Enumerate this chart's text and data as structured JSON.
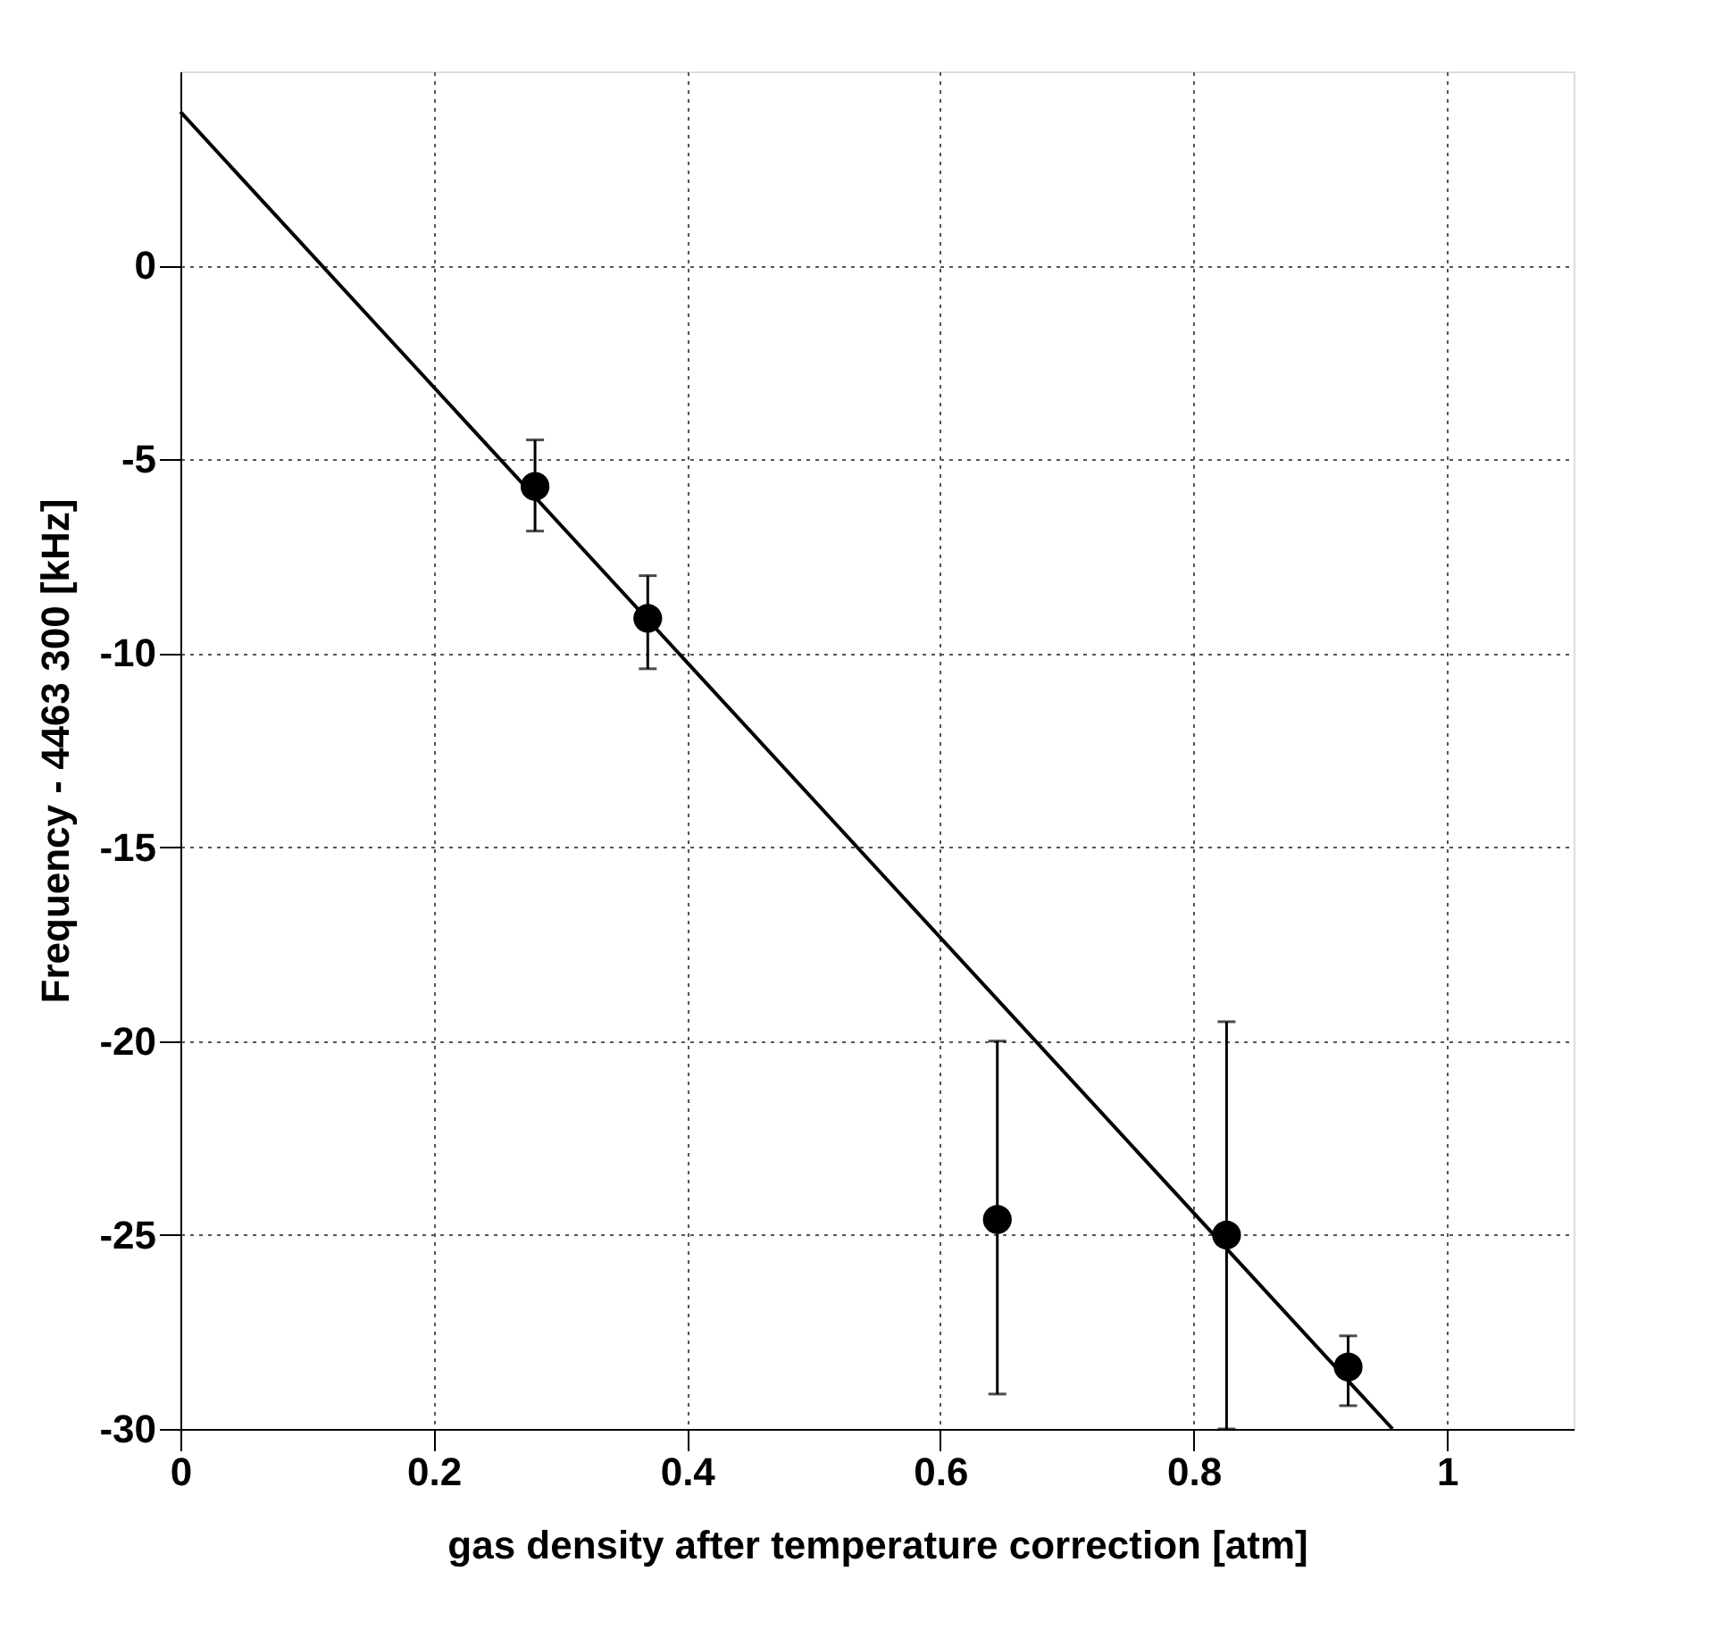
{
  "chart_data": {
    "type": "scatter",
    "xlabel": "gas density after temperature correction [atm]",
    "ylabel": "Frequency - 4463 300 [kHz]",
    "series": [
      {
        "color": "#000000",
        "marker": "circle",
        "x": [
          0.28,
          0.369,
          0.645,
          0.826,
          0.922
        ],
        "values": [
          -5.7,
          -9.1,
          -24.6,
          -25.0,
          -28.4
        ],
        "errors": [
          [
            -6.85,
            -4.5
          ],
          [
            -10.4,
            -8.0
          ],
          [
            -29.1,
            -20.0
          ],
          [
            -30.0,
            -19.5
          ],
          [
            -29.4,
            -27.6
          ]
        ]
      },
      {
        "type": "line",
        "color": "#000000",
        "x": [
          0,
          0.957
        ],
        "values": [
          3.96,
          -30
        ]
      }
    ],
    "xlim": [
      0,
      1.1
    ],
    "ylim": [
      -30,
      5
    ],
    "xticks": [
      0,
      0.2,
      0.4,
      0.6,
      0.8,
      1
    ],
    "yticks": [
      -30,
      -25,
      -20,
      -15,
      -10,
      -5,
      0
    ],
    "grid": true,
    "line_style": "solid"
  }
}
